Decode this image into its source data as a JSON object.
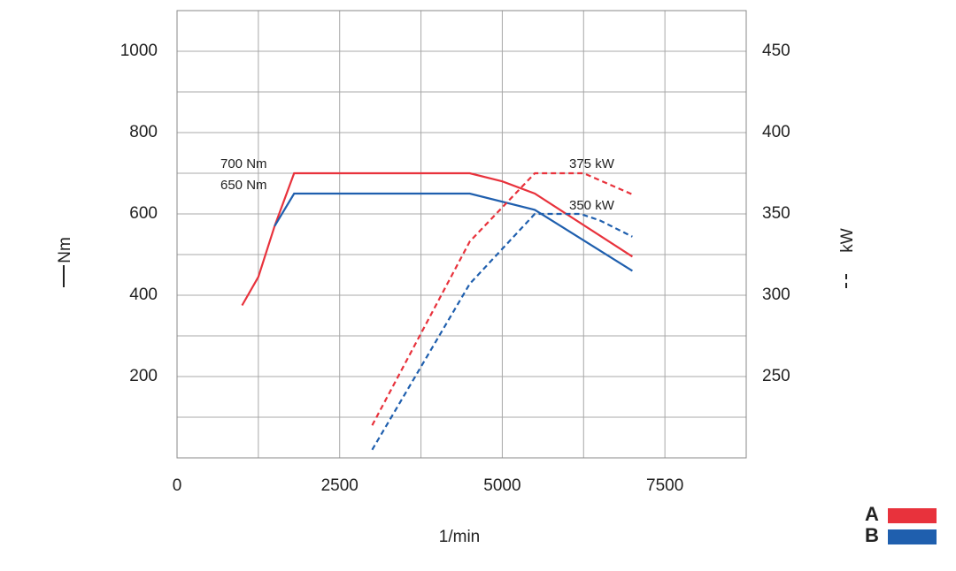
{
  "chart_data": {
    "type": "line",
    "x_label": "1/min",
    "y_label": "Nm",
    "y2_label": "kW",
    "xlim": [
      0,
      8750
    ],
    "xticks": [
      0,
      2500,
      5000,
      7500
    ],
    "x_minor_ticks": [
      1250,
      3750,
      6250,
      8750
    ],
    "ylim": [
      0,
      1100
    ],
    "yticks": [
      200,
      400,
      600,
      800,
      1000
    ],
    "y_minor_ticks": [
      100,
      300,
      500,
      700,
      900
    ],
    "y2lim": [
      200,
      475
    ],
    "y2ticks": [
      250,
      300,
      350,
      400,
      450
    ],
    "grid": true,
    "series": [
      {
        "name": "A",
        "color": "#e8323c",
        "style": "solid",
        "x": [
          1000,
          1250,
          1500,
          1800,
          4500,
          5000,
          5500,
          7000
        ],
        "values": [
          375,
          445,
          570,
          700,
          700,
          680,
          650,
          495
        ]
      },
      {
        "name": "B",
        "color": "#1f5fae",
        "style": "solid",
        "x": [
          1500,
          1800,
          4500,
          5500,
          6500,
          7000
        ],
        "values": [
          570,
          650,
          650,
          610,
          510,
          460
        ]
      },
      {
        "name": "A",
        "color": "#e8323c",
        "style": "dashed",
        "axis": "y2",
        "x": [
          3000,
          4500,
          5500,
          6250,
          7000
        ],
        "values": [
          220,
          333,
          375,
          375,
          362
        ]
      },
      {
        "name": "B",
        "color": "#1f5fae",
        "style": "dashed",
        "axis": "y2",
        "x": [
          3000,
          4500,
          5500,
          6200,
          6500,
          7000
        ],
        "values": [
          205,
          307,
          350,
          350,
          346,
          336
        ]
      }
    ],
    "annotations": [
      {
        "text": "700 Nm"
      },
      {
        "text": "650 Nm"
      },
      {
        "text": "375 kW"
      },
      {
        "text": "350 kW"
      }
    ]
  }
}
